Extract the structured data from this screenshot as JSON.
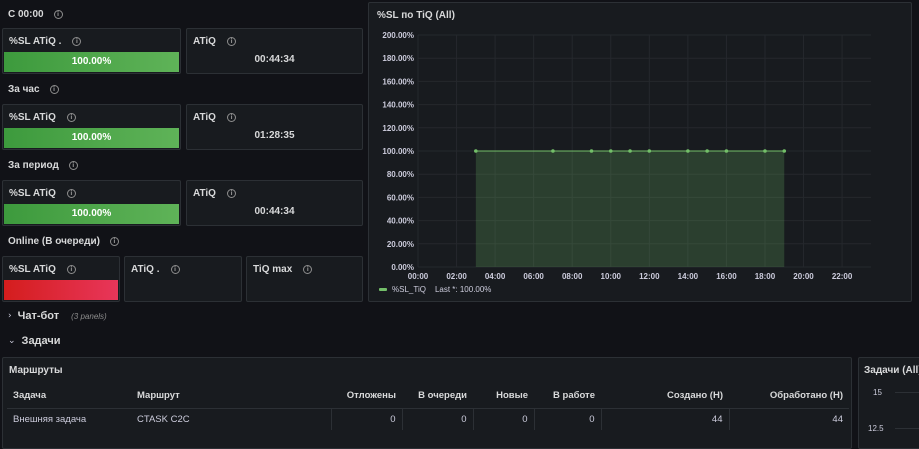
{
  "sections": {
    "since_midnight": "С 00:00",
    "last_hour": "За час",
    "period": "За период",
    "online": "Online (В очереди)"
  },
  "stats": {
    "since_midnight": {
      "sl_title": "%SL ATiQ .",
      "sl_value": "100.00%",
      "sl_fraction": 1.0,
      "atiq_title": "ATiQ",
      "atiq_value": "00:44:34"
    },
    "last_hour": {
      "sl_title": "%SL ATiQ",
      "sl_value": "100.00%",
      "sl_fraction": 1.0,
      "atiq_title": "ATiQ",
      "atiq_value": "01:28:35"
    },
    "period": {
      "sl_title": "%SL ATiQ",
      "sl_value": "100.00%",
      "sl_fraction": 1.0,
      "atiq_title": "ATiQ",
      "atiq_value": "00:44:34"
    },
    "online": {
      "sl_title": "%SL ATiQ",
      "atiq_title": "ATiQ .",
      "tiq_max_title": "TiQ max"
    }
  },
  "chart": {
    "title": "%SL по TiQ (All)",
    "legend_label": "%SL_TiQ",
    "legend_stat": "Last *: 100.00%"
  },
  "chart_data": {
    "type": "area",
    "title": "%SL по TiQ (All)",
    "xlabel": "",
    "ylabel": "",
    "x_ticks": [
      "00:00",
      "02:00",
      "04:00",
      "06:00",
      "08:00",
      "10:00",
      "12:00",
      "14:00",
      "16:00",
      "18:00",
      "20:00",
      "22:00"
    ],
    "y_ticks": [
      "0.00%",
      "20.00%",
      "40.00%",
      "60.00%",
      "80.00%",
      "100.00%",
      "120.00%",
      "140.00%",
      "160.00%",
      "180.00%",
      "200.00%"
    ],
    "xlim": [
      0,
      23.5
    ],
    "ylim": [
      0,
      200
    ],
    "grid": true,
    "legend_position": "bottom-left",
    "series": [
      {
        "name": "%SL_TiQ",
        "color": "#73bf69",
        "x": [
          3,
          7,
          9,
          10,
          11,
          12,
          14,
          15,
          16,
          18,
          19
        ],
        "y": [
          100,
          100,
          100,
          100,
          100,
          100,
          100,
          100,
          100,
          100,
          100
        ]
      }
    ]
  },
  "rows": {
    "chatbot": {
      "title": "Чат-бот",
      "sub": "(3 panels)"
    },
    "tasks": {
      "title": "Задачи"
    }
  },
  "routes": {
    "title": "Маршруты",
    "columns": [
      "Задача",
      "Маршрут",
      "Отложены",
      "В очереди",
      "Новые",
      "В работе",
      "Создано (H)",
      "Обработано (H)"
    ],
    "rows": [
      [
        "Внешняя задача",
        "CTASK C2C",
        "0",
        "0",
        "0",
        "0",
        "44",
        "44"
      ]
    ]
  },
  "tasks_panel": {
    "title": "Задачи (All)",
    "y_ticks": [
      "15",
      "12.5"
    ]
  },
  "colors": {
    "ok": "#56a64b",
    "bad": "#e02f44",
    "series": "#73bf69"
  }
}
